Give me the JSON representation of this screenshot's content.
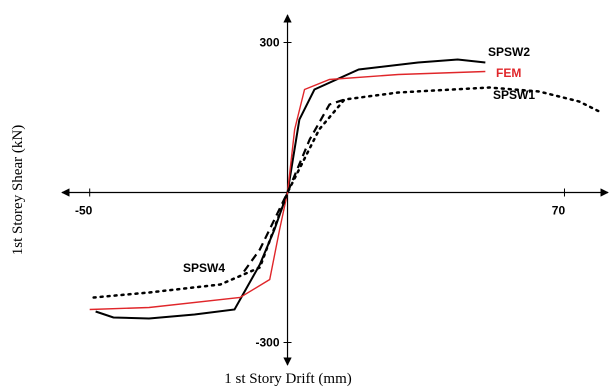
{
  "chart_data": {
    "type": "line",
    "x_label": "1 st Story Drift (mm)",
    "y_label": "1st  Storey Shear (kN)",
    "xlim": [
      -57,
      81
    ],
    "ylim": [
      -345,
      355
    ],
    "xticks": [
      -50,
      70
    ],
    "yticks": [
      300,
      -300
    ],
    "series": [
      {
        "name": "SPSW2",
        "color": "#000000",
        "style": "solid",
        "x": [
          -48.5,
          -44,
          -35,
          -23.5,
          -13.4,
          -7,
          -3.3,
          0,
          3,
          6.8,
          18,
          33,
          43,
          50
        ],
        "values": [
          -238,
          -250,
          -252,
          -244,
          -234,
          -144,
          -74,
          0,
          146,
          206,
          246,
          260,
          266,
          260
        ]
      },
      {
        "name": "FEM",
        "color": "#e0262a",
        "style": "solid",
        "x": [
          -50,
          -35,
          -12,
          -4.5,
          -2,
          0,
          1.8,
          4.3,
          10.6,
          28,
          50
        ],
        "values": [
          -234,
          -230,
          -210,
          -174,
          -74,
          0,
          126,
          206,
          226,
          236,
          242
        ]
      },
      {
        "name": "SPSW1",
        "color": "#000000",
        "style": "dotted",
        "x": [
          -49,
          -35,
          -17,
          -7,
          0,
          8,
          14.4,
          28,
          51,
          63.6,
          73.7,
          78.8
        ],
        "values": [
          -210,
          -200,
          -184,
          -150,
          0,
          126,
          186,
          200,
          210,
          202,
          182,
          162
        ]
      },
      {
        "name": "SPSW4",
        "color": "#000000",
        "style": "dashed",
        "x": [
          -11,
          -7,
          -3.3,
          0,
          5.6,
          10.6,
          14.4
        ],
        "values": [
          -158,
          -114,
          -54,
          0,
          106,
          176,
          186
        ]
      }
    ]
  }
}
